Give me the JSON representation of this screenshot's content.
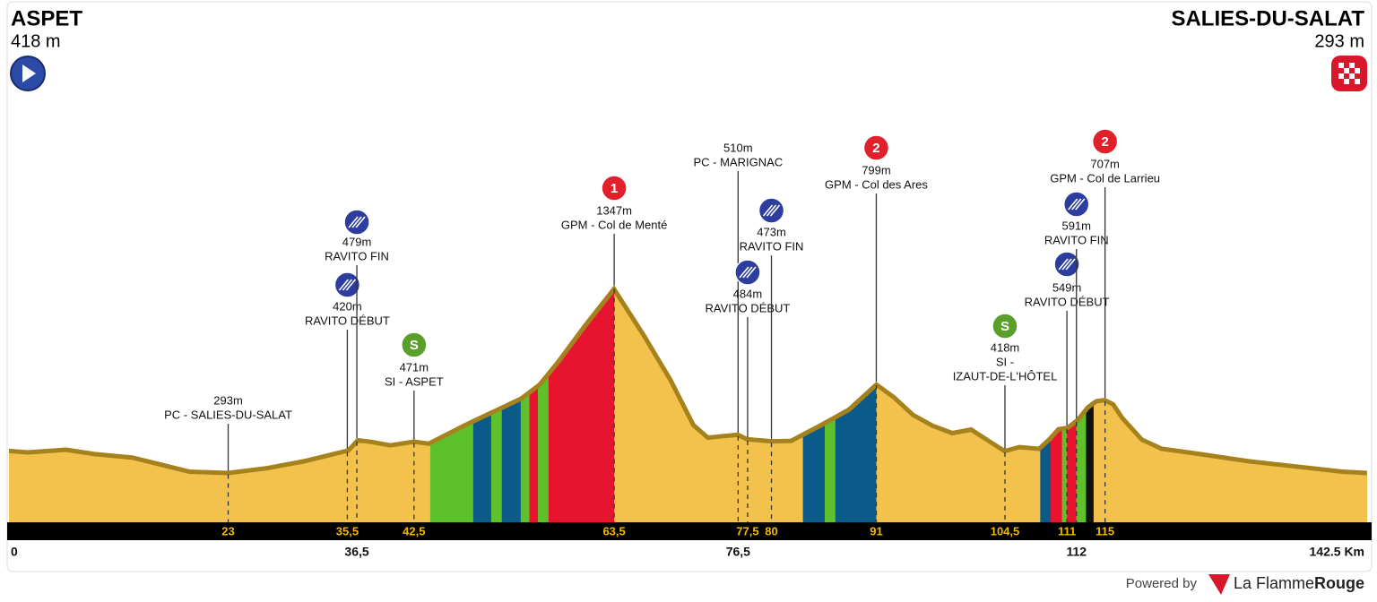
{
  "header": {
    "start": {
      "name": "ASPET",
      "elevation": "418 m"
    },
    "finish": {
      "name": "SALIES-DU-SALAT",
      "elevation": "293 m"
    }
  },
  "chart_data": {
    "type": "profile",
    "xlim": [
      0,
      142.5
    ],
    "ylim": [
      0,
      1500
    ],
    "fill_color": "#f2c24c",
    "edge_color": "#a5821e",
    "profile": {
      "km": [
        0,
        2,
        6,
        9,
        13,
        19,
        23,
        27,
        31,
        35.5,
        36.5,
        38,
        40,
        42.5,
        44,
        48,
        53.6,
        55.5,
        57.4,
        60.2,
        63.5,
        66.8,
        69.6,
        72,
        73.4,
        76.5,
        77.5,
        80,
        82,
        85,
        88,
        91,
        93,
        95,
        97,
        99,
        101,
        103,
        104.5,
        106,
        108,
        109,
        110,
        111,
        112,
        113,
        114,
        115,
        116,
        117,
        119,
        121,
        125,
        130,
        135,
        140,
        142.5
      ],
      "values": [
        418,
        410,
        425,
        400,
        380,
        300,
        293,
        320,
        360,
        420,
        479,
        470,
        450,
        471,
        460,
        570,
        713,
        790,
        916,
        1120,
        1347,
        1069,
        815,
        560,
        494,
        510,
        484,
        473,
        475,
        560,
        650,
        799,
        720,
        620,
        560,
        520,
        540,
        470,
        418,
        440,
        430,
        480,
        540,
        549,
        591,
        660,
        700,
        707,
        680,
        600,
        480,
        430,
        400,
        360,
        330,
        300,
        293
      ]
    },
    "segments": [
      {
        "start": 44.2,
        "end": 48.7,
        "color": "#5cc12b"
      },
      {
        "start": 48.7,
        "end": 50.6,
        "color": "#0b5b8a"
      },
      {
        "start": 50.6,
        "end": 51.7,
        "color": "#5cc12b"
      },
      {
        "start": 51.7,
        "end": 53.7,
        "color": "#0b5b8a"
      },
      {
        "start": 53.7,
        "end": 54.6,
        "color": "#5cc12b"
      },
      {
        "start": 54.6,
        "end": 55.5,
        "color": "#e8132f"
      },
      {
        "start": 55.5,
        "end": 56.6,
        "color": "#5cc12b"
      },
      {
        "start": 56.6,
        "end": 63.5,
        "color": "#e8132f"
      },
      {
        "start": 83.3,
        "end": 85.6,
        "color": "#0b5b8a"
      },
      {
        "start": 85.6,
        "end": 86.7,
        "color": "#5cc12b"
      },
      {
        "start": 86.7,
        "end": 91,
        "color": "#0b5b8a"
      },
      {
        "start": 108.2,
        "end": 109.3,
        "color": "#0b5b8a"
      },
      {
        "start": 109.3,
        "end": 110.5,
        "color": "#e8132f"
      },
      {
        "start": 110.5,
        "end": 111,
        "color": "#5cc12b"
      },
      {
        "start": 111,
        "end": 112,
        "color": "#e8132f"
      },
      {
        "start": 112,
        "end": 113,
        "color": "#5cc12b"
      },
      {
        "start": 113,
        "end": 113.8,
        "color": "#111111"
      }
    ],
    "waypoints": [
      {
        "km": 23,
        "value": 293,
        "value_label": "293m",
        "label": [
          "PC - SALIES-DU-SALAT"
        ]
      },
      {
        "km": 35.5,
        "value": 420,
        "value_label": "420m",
        "label": [
          "RAVITO DÉBUT"
        ],
        "badge": {
          "color": "#2c3d9f"
        }
      },
      {
        "km": 36.5,
        "value": 479,
        "value_label": "479m",
        "label": [
          "RAVITO FIN"
        ],
        "badge": {
          "color": "#2c3d9f"
        }
      },
      {
        "km": 42.5,
        "value": 471,
        "value_label": "471m",
        "label": [
          "SI - ASPET"
        ],
        "badge": {
          "color": "#5a9f2a",
          "text": "S"
        }
      },
      {
        "km": 63.5,
        "value": 1347,
        "value_label": "1347m",
        "label": [
          "GPM - Col de Menté"
        ],
        "badge": {
          "color": "#e0202a",
          "text": "1"
        }
      },
      {
        "km": 76.5,
        "value": 510,
        "value_label": "510m",
        "label": [
          "PC - MARIGNAC"
        ]
      },
      {
        "km": 77.5,
        "value": 484,
        "value_label": "484m",
        "label": [
          "RAVITO DÉBUT"
        ],
        "badge": {
          "color": "#2c3d9f"
        }
      },
      {
        "km": 80,
        "value": 473,
        "value_label": "473m",
        "label": [
          "RAVITO FIN"
        ],
        "badge": {
          "color": "#2c3d9f"
        }
      },
      {
        "km": 91,
        "value": 799,
        "value_label": "799m",
        "label": [
          "GPM - Col des Ares"
        ],
        "badge": {
          "color": "#e0202a",
          "text": "2"
        }
      },
      {
        "km": 104.5,
        "value": 418,
        "value_label": "418m",
        "label": [
          "SI -",
          "IZAUT-DE-L'HÔTEL"
        ],
        "badge": {
          "color": "#5a9f2a",
          "text": "S"
        }
      },
      {
        "km": 111,
        "value": 549,
        "value_label": "549m",
        "label": [
          "RAVITO DÉBUT"
        ],
        "badge": {
          "color": "#2c3d9f"
        }
      },
      {
        "km": 112,
        "value": 591,
        "value_label": "591m",
        "label": [
          "RAVITO FIN"
        ],
        "badge": {
          "color": "#2c3d9f"
        }
      },
      {
        "km": 115,
        "value": 707,
        "value_label": "707m",
        "label": [
          "GPM - Col de Larrieu"
        ],
        "badge": {
          "color": "#e0202a",
          "text": "2"
        }
      }
    ],
    "xticks": [
      23,
      {
        "value": 35.5,
        "label": "35,5"
      },
      {
        "value": 42.5,
        "label": "42,5"
      },
      {
        "value": 63.5,
        "label": "63,5"
      },
      {
        "value": 77.5,
        "label": "77,5"
      },
      80,
      91,
      {
        "value": 104.5,
        "label": "104,5"
      },
      111,
      115
    ],
    "xticks_bottom": [
      0,
      {
        "value": 36.5,
        "label": "36,5"
      },
      {
        "value": 76.5,
        "label": "76,5"
      },
      112,
      {
        "value": 142.5,
        "label": "142.5 Km"
      }
    ]
  },
  "footer": {
    "powered": "Powered by",
    "brand_a": "La Flamme",
    "brand_b": "Rouge"
  }
}
